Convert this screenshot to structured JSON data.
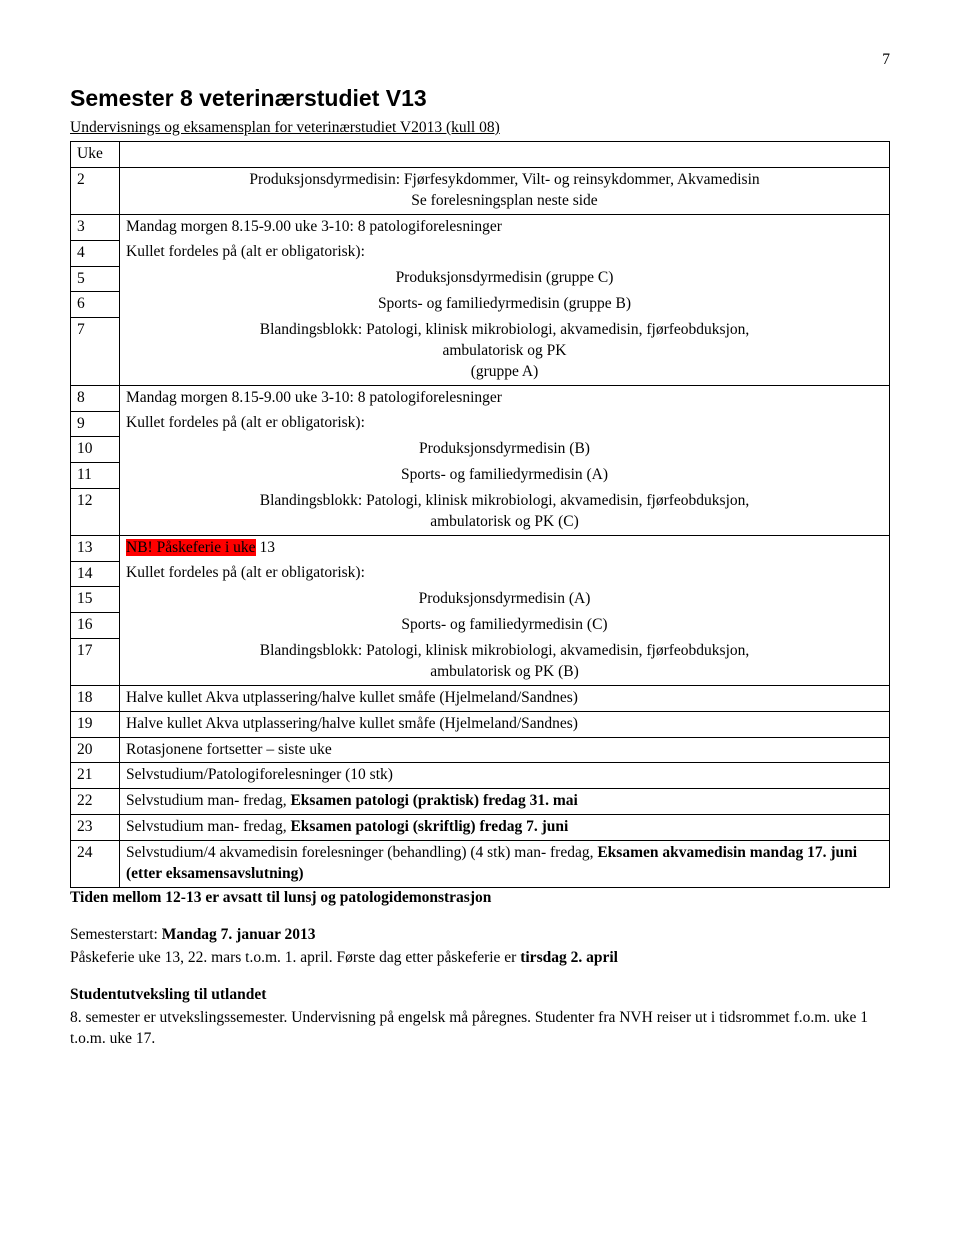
{
  "pageNumber": "7",
  "heading": "Semester 8 veterinærstudiet V13",
  "subtitle": "Undervisnings og eksamensplan for veterinærstudiet V2013 (kull 08)",
  "ukeHeader": "Uke",
  "lines": {
    "r2a": "Produksjonsdyrmedisin: Fjørfesykdommer, Vilt- og reinsykdommer, Akvamedisin",
    "r2b": "Se forelesningsplan neste side",
    "r3": "Mandag morgen 8.15-9.00 uke 3-10: 8 patologiforelesninger",
    "r4": "Kullet fordeles på (alt er obligatorisk):",
    "r5": "Produksjonsdyrmedisin (gruppe C)",
    "r6": "Sports- og familiedyrmedisin (gruppe B)",
    "r7a": "Blandingsblokk: Patologi, klinisk mikrobiologi, akvamedisin, fjørfeobduksjon,",
    "r7b": "ambulatorisk og PK",
    "r7c": "(gruppe A)",
    "r8": "Mandag morgen 8.15-9.00 uke 3-10: 8 patologiforelesninger",
    "r9": "Kullet fordeles på (alt er obligatorisk):",
    "r10": "Produksjonsdyrmedisin (B)",
    "r11": "Sports- og familiedyrmedisin (A)",
    "r12a": "Blandingsblokk: Patologi, klinisk mikrobiologi, akvamedisin, fjørfeobduksjon,",
    "r12b": "ambulatorisk og PK (C)",
    "r13hl": "NB! Påskeferie i uke",
    "r13rest": " 13",
    "r14": "Kullet fordeles på (alt er obligatorisk):",
    "r15": "Produksjonsdyrmedisin (A)",
    "r16": "Sports- og familiedyrmedisin (C)",
    "r17a": "Blandingsblokk: Patologi, klinisk mikrobiologi, akvamedisin, fjørfeobduksjon,",
    "r17b": "ambulatorisk og PK (B)",
    "r18": "Halve kullet Akva utplassering/halve kullet småfe (Hjelmeland/Sandnes)",
    "r19": "Halve kullet Akva utplassering/halve kullet småfe (Hjelmeland/Sandnes)",
    "r20": "Rotasjonene fortsetter – siste uke",
    "r21": "Selvstudium/Patologiforelesninger (10 stk)",
    "r22a": "Selvstudium man- fredag, ",
    "r22b": "Eksamen patologi (praktisk) fredag 31. mai",
    "r23a": "Selvstudium man- fredag, ",
    "r23b": "Eksamen patologi (skriftlig) fredag 7. juni",
    "r24a": "Selvstudium/4  akvamedisin forelesninger (behandling) (4 stk) man- fredag, ",
    "r24b": "Eksamen akvamedisin mandag 17. juni (etter eksamensavslutning)"
  },
  "weeks": {
    "w2": "2",
    "w3": "3",
    "w4": "4",
    "w5": "5",
    "w6": "6",
    "w7": "7",
    "w8": "8",
    "w9": "9",
    "w10": "10",
    "w11": "11",
    "w12": "12",
    "w13": "13",
    "w14": "14",
    "w15": "15",
    "w16": "16",
    "w17": "17",
    "w18": "18",
    "w19": "19",
    "w20": "20",
    "w21": "21",
    "w22": "22",
    "w23": "23",
    "w24": "24"
  },
  "footer": {
    "l1": "Tiden mellom 12-13 er avsatt til lunsj og patologidemonstrasjon",
    "l2a": "Semesterstart: ",
    "l2b": "Mandag 7. januar 2013",
    "l3a": "Påskeferie uke 13, 22. mars t.o.m. 1. april. Første dag etter påskeferie er ",
    "l3b": "tirsdag 2. april",
    "l4": "Studentutveksling til utlandet",
    "l5": "8. semester er utvekslingssemester. Undervisning på engelsk må påregnes. Studenter fra NVH reiser ut i tidsrommet f.o.m. uke 1 t.o.m. uke 17."
  }
}
